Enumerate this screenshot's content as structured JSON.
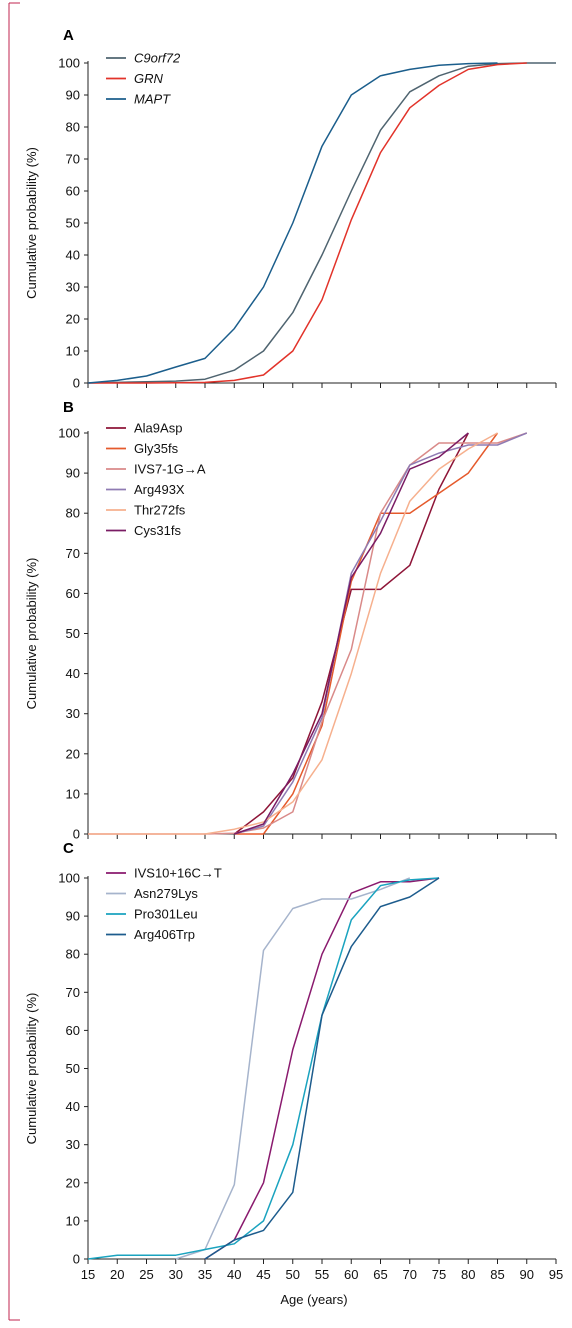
{
  "colors": {
    "frame": "#c0264f",
    "axis": "#222222",
    "C9orf72": "#4f6470",
    "GRN": "#e2332a",
    "MAPT": "#1b5e8c",
    "Ala9Asp": "#8e1538",
    "Gly35fs": "#e55a2c",
    "IVS7_1G_A": "#d98a89",
    "Arg493X": "#8f7bb3",
    "Thr272fs": "#f6b08e",
    "Cys31fs": "#7a1c64",
    "IVS10_16C_T": "#8a1a6e",
    "Asn279Lys": "#a6b4cc",
    "Pro301Leu": "#1aa3bf",
    "Arg406Trp": "#1d5c8d"
  },
  "chart_data": [
    {
      "type": "line",
      "panel_label": "A",
      "ylabel": "Cumulative probability (%)",
      "xlabel": "",
      "ylim": [
        0,
        100
      ],
      "yticks": [
        0,
        10,
        20,
        30,
        40,
        50,
        60,
        70,
        80,
        90,
        100
      ],
      "xlim": [
        15,
        95
      ],
      "xticks": [
        15,
        20,
        25,
        30,
        35,
        40,
        45,
        50,
        55,
        60,
        65,
        70,
        75,
        80,
        85,
        90,
        95
      ],
      "show_x_tick_labels": false,
      "legend_position": "top-left",
      "series": [
        {
          "name": "C9orf72",
          "italic": true,
          "color_key": "C9orf72",
          "x": [
            15,
            20,
            25,
            30,
            35,
            40,
            45,
            50,
            55,
            60,
            65,
            70,
            75,
            80,
            85,
            90,
            95
          ],
          "y": [
            0,
            0.2,
            0.4,
            0.6,
            1.2,
            4,
            10,
            22,
            40,
            60,
            79,
            91,
            96,
            99,
            99.8,
            100,
            100
          ]
        },
        {
          "name": "GRN",
          "italic": true,
          "color_key": "GRN",
          "x": [
            15,
            20,
            25,
            30,
            35,
            40,
            45,
            50,
            55,
            60,
            65,
            70,
            75,
            80,
            85,
            90
          ],
          "y": [
            0,
            0,
            0,
            0.1,
            0.2,
            0.8,
            2.5,
            10,
            26,
            51,
            72,
            86,
            93,
            98,
            99.5,
            100
          ]
        },
        {
          "name": "MAPT",
          "italic": true,
          "color_key": "MAPT",
          "x": [
            15,
            20,
            25,
            30,
            35,
            40,
            45,
            50,
            55,
            60,
            65,
            70,
            75,
            80,
            85
          ],
          "y": [
            0,
            0.8,
            2.2,
            5,
            7.7,
            17,
            30,
            50,
            74,
            90,
            96,
            98,
            99.3,
            99.8,
            100
          ]
        }
      ]
    },
    {
      "type": "line",
      "panel_label": "B",
      "ylabel": "Cumulative probability (%)",
      "xlabel": "",
      "ylim": [
        0,
        100
      ],
      "yticks": [
        0,
        10,
        20,
        30,
        40,
        50,
        60,
        70,
        80,
        90,
        100
      ],
      "xlim": [
        15,
        95
      ],
      "xticks": [
        15,
        20,
        25,
        30,
        35,
        40,
        45,
        50,
        55,
        60,
        65,
        70,
        75,
        80,
        85,
        90,
        95
      ],
      "show_x_tick_labels": false,
      "legend_position": "top-left",
      "series": [
        {
          "name": "Ala9Asp",
          "color_key": "Ala9Asp",
          "x": [
            40,
            45,
            50,
            55,
            60,
            65,
            70,
            75,
            80
          ],
          "y": [
            0,
            5.5,
            14,
            33,
            61,
            61,
            67,
            86,
            100
          ]
        },
        {
          "name": "Gly35fs",
          "color_key": "Gly35fs",
          "x": [
            40,
            45,
            50,
            55,
            60,
            65,
            70,
            75,
            80,
            85
          ],
          "y": [
            0,
            0,
            10,
            27,
            63,
            80,
            80,
            85,
            90,
            100
          ]
        },
        {
          "name": "IVS7-1G→A",
          "color_key": "IVS7_1G_A",
          "x": [
            15,
            20,
            25,
            30,
            35,
            40,
            45,
            50,
            55,
            60,
            65,
            70,
            75,
            80,
            85,
            90
          ],
          "y": [
            0,
            0,
            0,
            0,
            0,
            0.2,
            1.5,
            5.5,
            28,
            46,
            80,
            92,
            97.5,
            97.5,
            97.5,
            100
          ]
        },
        {
          "name": "Arg493X",
          "color_key": "Arg493X",
          "x": [
            40,
            45,
            50,
            55,
            60,
            65,
            70,
            75,
            80,
            85,
            90
          ],
          "y": [
            0,
            2,
            13,
            29,
            65,
            78,
            92,
            95,
            97,
            97,
            100
          ]
        },
        {
          "name": "Thr272fs",
          "color_key": "Thr272fs",
          "x": [
            15,
            20,
            25,
            30,
            35,
            40,
            45,
            50,
            55,
            60,
            65,
            70,
            75,
            80,
            85
          ],
          "y": [
            0,
            0,
            0,
            0,
            0,
            1.2,
            3,
            8,
            18.5,
            40,
            65,
            83,
            91,
            96,
            100
          ]
        },
        {
          "name": "Cys31fs",
          "color_key": "Cys31fs",
          "x": [
            40,
            45,
            50,
            55,
            60,
            65,
            70,
            75,
            80
          ],
          "y": [
            0,
            2.5,
            15,
            30,
            64,
            75,
            91,
            94,
            100
          ]
        }
      ]
    },
    {
      "type": "line",
      "panel_label": "C",
      "ylabel": "Cumulative probability (%)",
      "xlabel": "Age (years)",
      "ylim": [
        0,
        100
      ],
      "yticks": [
        0,
        10,
        20,
        30,
        40,
        50,
        60,
        70,
        80,
        90,
        100
      ],
      "xlim": [
        15,
        95
      ],
      "xticks": [
        15,
        20,
        25,
        30,
        35,
        40,
        45,
        50,
        55,
        60,
        65,
        70,
        75,
        80,
        85,
        90,
        95
      ],
      "show_x_tick_labels": true,
      "legend_position": "top-left",
      "series": [
        {
          "name": "IVS10+16C→T",
          "color_key": "IVS10_16C_T",
          "x": [
            35,
            40,
            45,
            50,
            55,
            60,
            65,
            70,
            75
          ],
          "y": [
            0,
            5,
            20,
            55,
            80,
            96,
            99,
            99,
            100
          ]
        },
        {
          "name": "Asn279Lys",
          "color_key": "Asn279Lys",
          "x": [
            30,
            35,
            40,
            45,
            50,
            55,
            60,
            65,
            70
          ],
          "y": [
            0,
            2.5,
            19.5,
            81,
            92,
            94.5,
            94.5,
            97,
            100
          ]
        },
        {
          "name": "Pro301Leu",
          "color_key": "Pro301Leu",
          "x": [
            15,
            20,
            25,
            30,
            35,
            40,
            45,
            50,
            55,
            60,
            65,
            70,
            75
          ],
          "y": [
            0,
            1,
            1,
            1,
            2.5,
            4,
            10,
            30,
            64,
            89,
            98,
            99.5,
            100
          ]
        },
        {
          "name": "Arg406Trp",
          "color_key": "Arg406Trp",
          "x": [
            35,
            40,
            45,
            50,
            55,
            60,
            65,
            70,
            75
          ],
          "y": [
            0,
            5,
            7.5,
            17.5,
            64,
            82,
            92.5,
            95,
            100
          ]
        }
      ]
    }
  ]
}
